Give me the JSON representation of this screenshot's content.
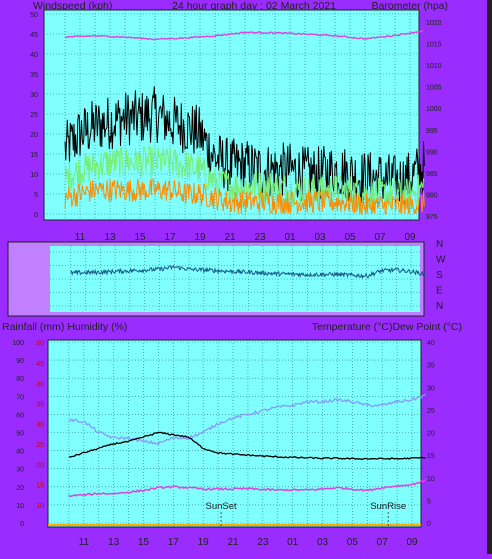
{
  "header": {
    "left_title": "Windspeed (kph)",
    "center_title": "24 hour graph day : 02 March 2021",
    "right_title": "Barometer (hpa)"
  },
  "middle": {
    "dir_labels": [
      "N",
      "W",
      "S",
      "E",
      "N"
    ]
  },
  "bottom_header": {
    "left_title": "Rainfall (mm)  Humidity (%)",
    "right_title": "Temperature (°C)Dew Point (°C)"
  },
  "x_ticks": [
    "11",
    "13",
    "15",
    "17",
    "19",
    "21",
    "23",
    "01",
    "03",
    "05",
    "07",
    "09"
  ],
  "annotations": {
    "sunset": "SunSet",
    "sunrise": "SunRise"
  },
  "colors": {
    "plot_bg": "#80ffff",
    "frame_bg": "#9b2cff",
    "wind_gust": "#000000",
    "wind_speed": "#77ee77",
    "wind_avg": "#ff8c00",
    "barometer": "#dd44dd",
    "wind_dir": "#1a5a8a",
    "temperature": "#000000",
    "dew_point": "#dd44dd",
    "humidity": "#8899ff"
  },
  "chart_data": [
    {
      "type": "line",
      "title": "24 hour graph day : 02 March 2021",
      "ylabel_left": "Windspeed (kph)",
      "ylabel_right": "Barometer (hpa)",
      "left_ticks": [
        "0",
        "5",
        "10",
        "15",
        "20",
        "25",
        "30",
        "35",
        "40",
        "45",
        "50"
      ],
      "right_ticks": [
        "975",
        "980",
        "985",
        "990",
        "995",
        "1000",
        "1005",
        "1010",
        "1015",
        "1020"
      ],
      "ylim_left": [
        0,
        50
      ],
      "ylim_right": [
        975,
        1020
      ],
      "grid": true,
      "series": [
        {
          "name": "Wind gust",
          "x": [
            10,
            11,
            12,
            13,
            14,
            15,
            16,
            17,
            18,
            19,
            20,
            21,
            22,
            23,
            24,
            25,
            26,
            27,
            28,
            29,
            30,
            31,
            32,
            33,
            34
          ],
          "values": [
            16,
            20,
            22,
            23,
            24,
            24,
            25,
            23,
            22,
            20,
            14,
            12,
            12,
            11,
            11,
            11,
            10,
            10,
            11,
            10,
            9,
            9,
            8,
            9,
            12
          ]
        },
        {
          "name": "Wind speed",
          "x": [
            10,
            11,
            12,
            13,
            14,
            15,
            16,
            17,
            18,
            19,
            20,
            21,
            22,
            23,
            24,
            25,
            26,
            27,
            28,
            29,
            30,
            31,
            32,
            33,
            34
          ],
          "values": [
            9,
            11,
            12,
            13,
            13,
            13,
            13,
            13,
            12,
            11,
            8,
            7,
            7,
            7,
            7,
            6,
            6,
            6,
            6,
            6,
            5,
            5,
            5,
            5,
            7
          ]
        },
        {
          "name": "Wind average",
          "x": [
            10,
            11,
            12,
            13,
            14,
            15,
            16,
            17,
            18,
            19,
            20,
            21,
            22,
            23,
            24,
            25,
            26,
            27,
            28,
            29,
            30,
            31,
            32,
            33,
            34
          ],
          "values": [
            4,
            5,
            6,
            6,
            6,
            6,
            6,
            6,
            5,
            5,
            4,
            3,
            3,
            3,
            3,
            3,
            3,
            3,
            3,
            3,
            2,
            2,
            2,
            2,
            3
          ]
        },
        {
          "name": "Barometer",
          "x": [
            10,
            12,
            14,
            16,
            18,
            20,
            22,
            24,
            26,
            28,
            30,
            32,
            34
          ],
          "values": [
            1016.5,
            1016.8,
            1016.5,
            1016,
            1016.3,
            1016.8,
            1017.6,
            1017.5,
            1017.2,
            1016.8,
            1016.1,
            1016.9,
            1018
          ]
        }
      ]
    },
    {
      "type": "line",
      "ylim": [
        0,
        360
      ],
      "series": [
        {
          "name": "Wind direction",
          "x": [
            10,
            12,
            14,
            16,
            17,
            18,
            20,
            22,
            24,
            26,
            28,
            30,
            31,
            32,
            33,
            34
          ],
          "values": [
            220,
            225,
            235,
            245,
            260,
            245,
            235,
            225,
            215,
            210,
            210,
            200,
            235,
            240,
            230,
            210
          ]
        }
      ]
    },
    {
      "type": "line",
      "ylabel_left": "Rainfall (mm)  Humidity (%)",
      "ylabel_right": "Temperature (°C)Dew Point (°C)",
      "left_ticks": [
        "0",
        "10",
        "20",
        "30",
        "40",
        "50",
        "60",
        "70",
        "80",
        "90",
        "100"
      ],
      "red_ticks": [
        "10",
        "15",
        "20",
        "25",
        "30",
        "35",
        "40",
        "45",
        "50"
      ],
      "right_ticks": [
        "0",
        "5",
        "10",
        "15",
        "20",
        "25",
        "30",
        "35",
        "40"
      ],
      "ylim_left": [
        0,
        100
      ],
      "ylim_right": [
        0,
        40
      ],
      "series": [
        {
          "name": "Humidity",
          "x": [
            10,
            11,
            12,
            13,
            14,
            15,
            16,
            17,
            18,
            19,
            20,
            21,
            22,
            23,
            24,
            25,
            26,
            27,
            28,
            29,
            30,
            31,
            32,
            33,
            34
          ],
          "values": [
            57,
            56,
            50,
            47,
            47,
            45,
            44,
            47,
            47,
            50,
            55,
            58,
            60,
            62,
            64,
            65,
            67,
            67,
            68,
            67,
            65,
            65,
            67,
            68,
            71
          ]
        },
        {
          "name": "Temperature",
          "x": [
            10,
            11,
            12,
            13,
            14,
            15,
            16,
            17,
            18,
            19,
            20,
            21,
            22,
            23,
            24,
            25,
            26,
            27,
            28,
            29,
            30,
            31,
            32,
            33,
            34
          ],
          "values": [
            14.5,
            15.5,
            16.5,
            17.5,
            18,
            19,
            20,
            19.5,
            19,
            16.5,
            15.5,
            15.2,
            15,
            14.8,
            14.6,
            14.5,
            14.4,
            14.3,
            14.3,
            14.2,
            14.2,
            14.2,
            14.2,
            14.3,
            14.5
          ]
        },
        {
          "name": "Dew Point",
          "x": [
            10,
            11,
            12,
            13,
            14,
            15,
            16,
            17,
            18,
            19,
            20,
            21,
            22,
            23,
            24,
            25,
            26,
            27,
            28,
            29,
            30,
            31,
            32,
            33,
            34
          ],
          "values": [
            6,
            6.2,
            6.5,
            6.5,
            6.8,
            7.2,
            7.8,
            8,
            7.8,
            7.5,
            7.5,
            7.5,
            7.6,
            7.4,
            7.3,
            7.3,
            7.3,
            7.5,
            7.8,
            7.5,
            7.2,
            7.8,
            8.2,
            8.5,
            9.5
          ]
        }
      ]
    }
  ]
}
